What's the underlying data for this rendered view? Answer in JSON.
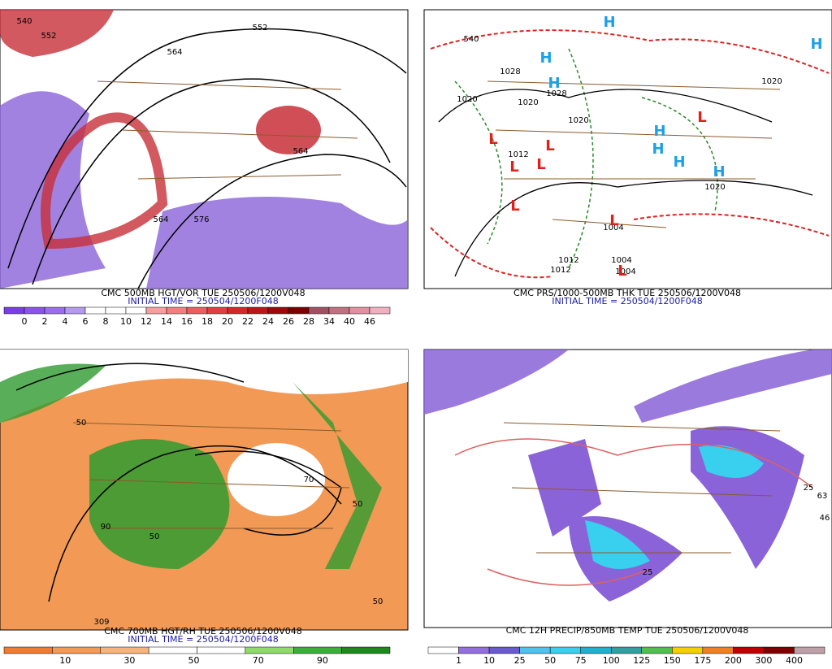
{
  "panels": [
    {
      "caption": "CMC 500MB HGT/VOR TUE 250506/1200V048",
      "initial_time": "INITIAL TIME = 250504/1200F048",
      "colorbar_labels": [
        "0",
        "2",
        "4",
        "6",
        "8",
        "10",
        "12",
        "14",
        "16",
        "18",
        "20",
        "22",
        "24",
        "26",
        "28",
        "34",
        "40",
        "46"
      ],
      "contour_labels": [
        "540",
        "552",
        "564",
        "552",
        "564",
        "564",
        "576"
      ]
    },
    {
      "caption": "CMC PRS/1000-500MB THK TUE 250506/1200V048",
      "initial_time": "INITIAL TIME = 250504/1200F048",
      "contour_labels": [
        "540",
        "1020",
        "1028",
        "1020",
        "1028",
        "1020",
        "1012",
        "1020",
        "1020",
        "1004",
        "1012",
        "1012",
        "1004",
        "1004"
      ],
      "pressure_centers": [
        "H",
        "H",
        "H",
        "H",
        "H",
        "H",
        "H",
        "H",
        "L",
        "L",
        "L",
        "L",
        "L",
        "L",
        "L",
        "L"
      ]
    },
    {
      "caption": "CMC 700MB HGT/RH TUE 250506/1200V048",
      "initial_time": "INITIAL TIME = 250504/1200F048",
      "colorbar_labels": [
        "10",
        "30",
        "50",
        "70",
        "90"
      ],
      "contour_labels": [
        "50",
        "90",
        "50",
        "70",
        "50",
        "309",
        "50"
      ]
    },
    {
      "caption": "CMC 12H PRECIP/850MB TEMP TUE 250506/1200V048",
      "colorbar_labels": [
        "1",
        "10",
        "25",
        "50",
        "75",
        "100",
        "125",
        "150",
        "175",
        "200",
        "300",
        "400"
      ],
      "contour_labels": [
        "25",
        "63",
        "46",
        "25"
      ]
    }
  ]
}
